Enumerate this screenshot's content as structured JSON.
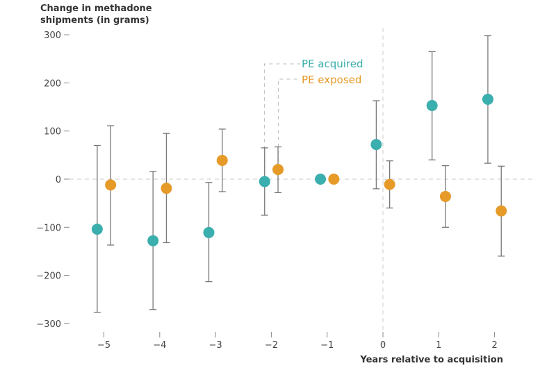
{
  "chart_data": {
    "type": "scatter",
    "ylabel_lines": [
      "Change in methadone",
      "shipments (in grams)"
    ],
    "xlabel": "Years relative to acquisition",
    "x_ticks": [
      -5,
      -4,
      -3,
      -2,
      -1,
      0,
      1,
      2
    ],
    "y_ticks": [
      300,
      200,
      100,
      0,
      -100,
      -200,
      -300
    ],
    "ylim": [
      -300,
      300
    ],
    "xlim": [
      -5.6,
      2.5
    ],
    "grid": false,
    "reference_lines": {
      "y": 0,
      "x": 0
    },
    "series": [
      {
        "name": "PE acquired",
        "color": "#3aafad",
        "x": [
          -5,
          -4,
          -3,
          -2,
          -1,
          0,
          1,
          2
        ],
        "y": [
          -104,
          -128,
          -111,
          -5,
          0,
          72,
          153,
          166
        ],
        "ci_low": [
          -277,
          -271,
          -213,
          -75,
          null,
          -20,
          40,
          33
        ],
        "ci_high": [
          70,
          16,
          -7,
          65,
          null,
          163,
          265,
          298
        ]
      },
      {
        "name": "PE exposed",
        "color": "#e69a28",
        "x": [
          -5,
          -4,
          -3,
          -2,
          -1,
          0,
          1,
          2
        ],
        "y": [
          -12,
          -19,
          39,
          20,
          0,
          -11,
          -36,
          -66
        ],
        "ci_low": [
          -137,
          -132,
          -26,
          -28,
          null,
          -60,
          -100,
          -160
        ],
        "ci_high": [
          111,
          95,
          104,
          67,
          null,
          38,
          28,
          27
        ]
      }
    ],
    "legend": "inline-callout"
  }
}
